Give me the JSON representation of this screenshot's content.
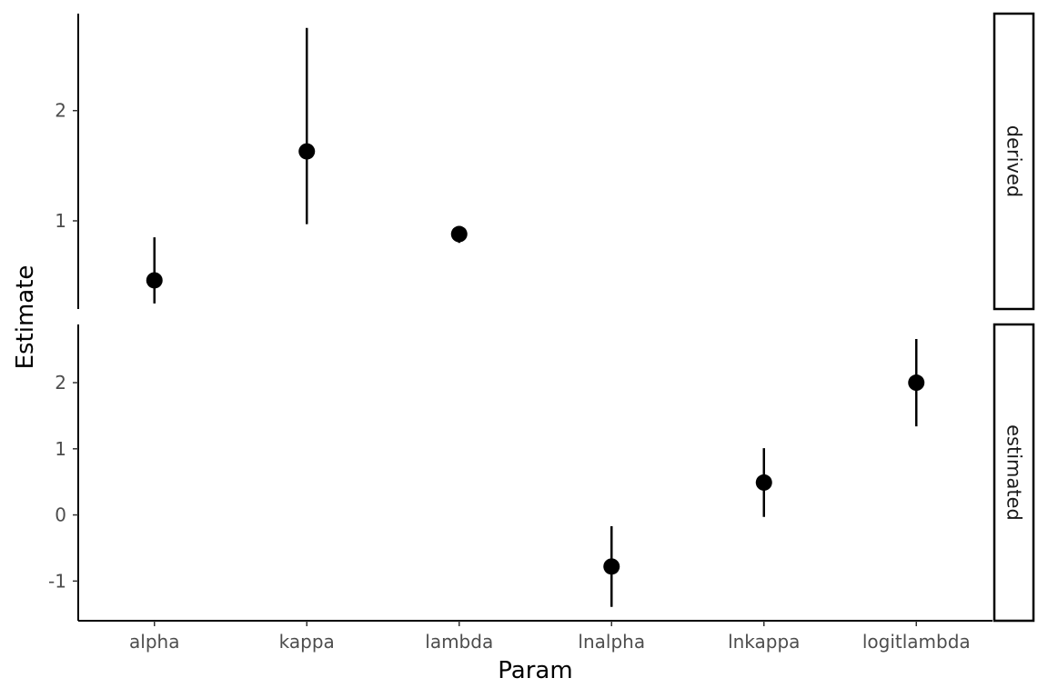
{
  "chart_data": {
    "type": "scatter",
    "subtype": "pointrange-faceted",
    "xlabel": "Param",
    "ylabel": "Estimate",
    "categories": [
      "alpha",
      "kappa",
      "lambda",
      "lnalpha",
      "lnkappa",
      "logitlambda"
    ],
    "grid": false,
    "panels": [
      {
        "strip": "derived",
        "ylim": [
          0.2,
          2.88
        ],
        "yticks": [
          1,
          2
        ],
        "ytick_labels": [
          "1",
          "2"
        ],
        "points": [
          {
            "x": "alpha",
            "estimate": 0.46,
            "lower": 0.25,
            "upper": 0.85
          },
          {
            "x": "kappa",
            "estimate": 1.63,
            "lower": 0.97,
            "upper": 2.75
          },
          {
            "x": "lambda",
            "estimate": 0.88,
            "lower": 0.8,
            "upper": 0.9
          }
        ]
      },
      {
        "strip": "estimated",
        "ylim": [
          -1.6,
          2.88
        ],
        "yticks": [
          -1,
          0,
          1,
          2
        ],
        "ytick_labels": [
          "-1",
          "0",
          "1",
          "2"
        ],
        "points": [
          {
            "x": "lnalpha",
            "estimate": -0.78,
            "lower": -1.39,
            "upper": -0.17
          },
          {
            "x": "lnkappa",
            "estimate": 0.49,
            "lower": -0.03,
            "upper": 1.01
          },
          {
            "x": "logitlambda",
            "estimate": 2.0,
            "lower": 1.34,
            "upper": 2.66
          }
        ]
      }
    ]
  }
}
